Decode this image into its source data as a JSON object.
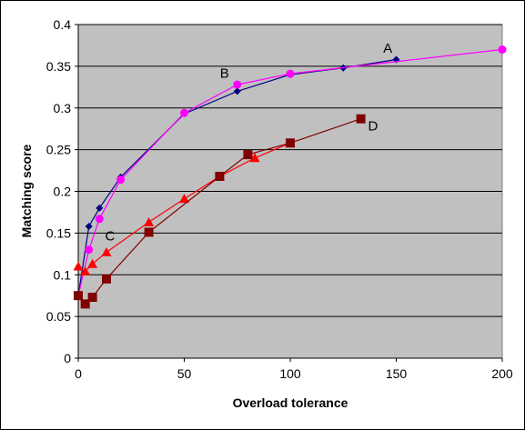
{
  "chart_data": {
    "type": "line",
    "title": "",
    "xlabel": "Overload tolerance",
    "ylabel": "Matching score",
    "xlim": [
      0,
      200
    ],
    "ylim": [
      0,
      0.4
    ],
    "x_ticks": [
      0,
      50,
      100,
      150,
      200
    ],
    "x_tick_labels": [
      "0",
      "50",
      "100",
      "150",
      "200"
    ],
    "y_ticks": [
      0,
      0.05,
      0.1,
      0.15,
      0.2,
      0.25,
      0.3,
      0.35,
      0.4
    ],
    "y_tick_labels": [
      "0",
      "0.05",
      "0.1",
      "0.15",
      "0.2",
      "0.25",
      "0.3",
      "0.35",
      "0.4"
    ],
    "grid": "horizontal",
    "plot_background": "#c0c0c0",
    "legend": "none",
    "series": [
      {
        "name": "A",
        "color": "#000080",
        "marker": "diamond",
        "x": [
          0,
          5,
          10,
          20,
          50,
          75,
          100,
          125,
          150
        ],
        "y": [
          0.075,
          0.158,
          0.18,
          0.217,
          0.293,
          0.32,
          0.34,
          0.348,
          0.358
        ]
      },
      {
        "name": "B",
        "color": "#ff00ff",
        "marker": "circle",
        "x": [
          0,
          5,
          10,
          20,
          50,
          75,
          100,
          200
        ],
        "y": [
          0.075,
          0.13,
          0.167,
          0.214,
          0.294,
          0.328,
          0.341,
          0.37
        ]
      },
      {
        "name": "C",
        "color": "#ff0000",
        "marker": "triangle",
        "x": [
          0,
          3.3,
          6.7,
          13.3,
          33.3,
          50,
          66.7,
          83.3,
          100
        ],
        "y": [
          0.11,
          0.104,
          0.113,
          0.127,
          0.163,
          0.191,
          0.218,
          0.24,
          0.258
        ]
      },
      {
        "name": "D",
        "color": "#800000",
        "marker": "square",
        "x": [
          0,
          3.3,
          6.7,
          13.3,
          33.3,
          66.7,
          80,
          100,
          133.3
        ],
        "y": [
          0.075,
          0.065,
          0.073,
          0.095,
          0.151,
          0.218,
          0.244,
          0.258,
          0.287
        ]
      }
    ],
    "annotations": [
      {
        "text": "A",
        "x": 146,
        "y": 0.366
      },
      {
        "text": "B",
        "x": 69,
        "y": 0.336
      },
      {
        "text": "C",
        "x": 15,
        "y": 0.141
      },
      {
        "text": "D",
        "x": 139,
        "y": 0.273
      }
    ]
  }
}
